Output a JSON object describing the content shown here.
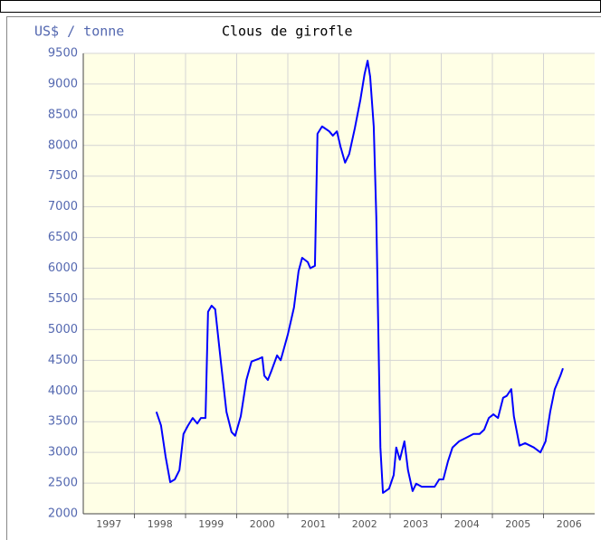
{
  "chart_data": {
    "type": "line",
    "title": "Clous de girofle",
    "y_label": "US$ / tonne",
    "grid": true,
    "plot_background": "#ffffe6",
    "ylim": [
      2000,
      9500
    ],
    "yticks": [
      2000,
      2500,
      3000,
      3500,
      4000,
      4500,
      5000,
      5500,
      6000,
      6500,
      7000,
      7500,
      8000,
      8500,
      9000,
      9500
    ],
    "xlim": [
      1997,
      2007
    ],
    "xticks": [
      {
        "value": 1997.5,
        "label": "1997"
      },
      {
        "value": 1998.5,
        "label": "1998"
      },
      {
        "value": 1999.5,
        "label": "1999"
      },
      {
        "value": 2000.5,
        "label": "2000"
      },
      {
        "value": 2001.5,
        "label": "2001"
      },
      {
        "value": 2002.5,
        "label": "2002"
      },
      {
        "value": 2003.5,
        "label": "2003"
      },
      {
        "value": 2004.5,
        "label": "2004"
      },
      {
        "value": 2005.5,
        "label": "2005"
      },
      {
        "value": 2006.5,
        "label": "2006"
      }
    ],
    "xgrid": [
      1998,
      1999,
      2000,
      2001,
      2002,
      2003,
      2004,
      2005,
      2006
    ],
    "series": [
      {
        "name": "Clous de girofle",
        "color": "#0000ff",
        "x": [
          1998.43,
          1998.52,
          1998.61,
          1998.7,
          1998.79,
          1998.88,
          1998.96,
          1999.05,
          1999.14,
          1999.23,
          1999.3,
          1999.39,
          1999.44,
          1999.51,
          1999.58,
          1999.69,
          1999.8,
          1999.9,
          1999.97,
          2000.08,
          2000.19,
          2000.29,
          2000.42,
          2000.5,
          2000.54,
          2000.61,
          2000.68,
          2000.79,
          2000.86,
          2001.0,
          2001.12,
          2001.21,
          2001.28,
          2001.39,
          2001.44,
          2001.53,
          2001.58,
          2001.67,
          2001.81,
          2001.88,
          2001.96,
          2002.03,
          2002.12,
          2002.2,
          2002.31,
          2002.42,
          2002.5,
          2002.56,
          2002.61,
          2002.68,
          2002.73,
          2002.81,
          2002.86,
          2002.98,
          2003.07,
          2003.12,
          2003.19,
          2003.28,
          2003.35,
          2003.44,
          2003.51,
          2003.62,
          2003.87,
          2003.96,
          2004.04,
          2004.13,
          2004.22,
          2004.35,
          2004.49,
          2004.63,
          2004.75,
          2004.84,
          2004.93,
          2005.02,
          2005.11,
          2005.21,
          2005.28,
          2005.37,
          2005.42,
          2005.53,
          2005.64,
          2005.81,
          2005.94,
          2006.04,
          2006.13,
          2006.22,
          2006.33,
          2006.38
        ],
        "values": [
          3660,
          3440,
          2930,
          2515,
          2560,
          2710,
          3300,
          3440,
          3560,
          3470,
          3560,
          3560,
          5290,
          5390,
          5330,
          4480,
          3660,
          3330,
          3270,
          3590,
          4180,
          4480,
          4520,
          4550,
          4250,
          4180,
          4330,
          4580,
          4500,
          4920,
          5360,
          5950,
          6170,
          6100,
          6000,
          6040,
          8190,
          8310,
          8230,
          8160,
          8230,
          7980,
          7720,
          7860,
          8280,
          8750,
          9160,
          9380,
          9120,
          8310,
          6840,
          3080,
          2340,
          2410,
          2630,
          3080,
          2880,
          3180,
          2710,
          2370,
          2490,
          2440,
          2440,
          2560,
          2560,
          2850,
          3080,
          3180,
          3240,
          3300,
          3300,
          3370,
          3560,
          3620,
          3560,
          3890,
          3920,
          4030,
          3590,
          3110,
          3150,
          3080,
          3000,
          3180,
          3660,
          4030,
          4250,
          4370
        ]
      }
    ]
  }
}
